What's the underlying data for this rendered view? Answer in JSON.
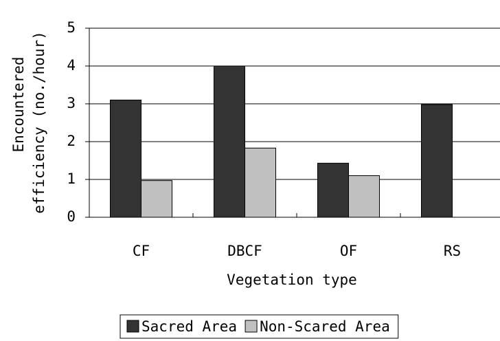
{
  "chart_data": {
    "type": "bar",
    "x_label": "Vegetation type",
    "y_label": [
      "Encountered",
      "efficiency (no./hour)"
    ],
    "categories": [
      "CF",
      "DBCF",
      "OF",
      "RS"
    ],
    "series": [
      {
        "name": "Sacred Area",
        "color": "#333333",
        "values": [
          3.1,
          4.0,
          1.43,
          2.98
        ]
      },
      {
        "name": "Non-Scared Area",
        "color": "#c0c0c0",
        "values": [
          0.97,
          1.83,
          1.1,
          null
        ]
      }
    ],
    "ylim": [
      0,
      5
    ],
    "yticks": [
      0,
      1,
      2,
      3,
      4,
      5
    ],
    "grid": true,
    "legend": "bottom"
  }
}
